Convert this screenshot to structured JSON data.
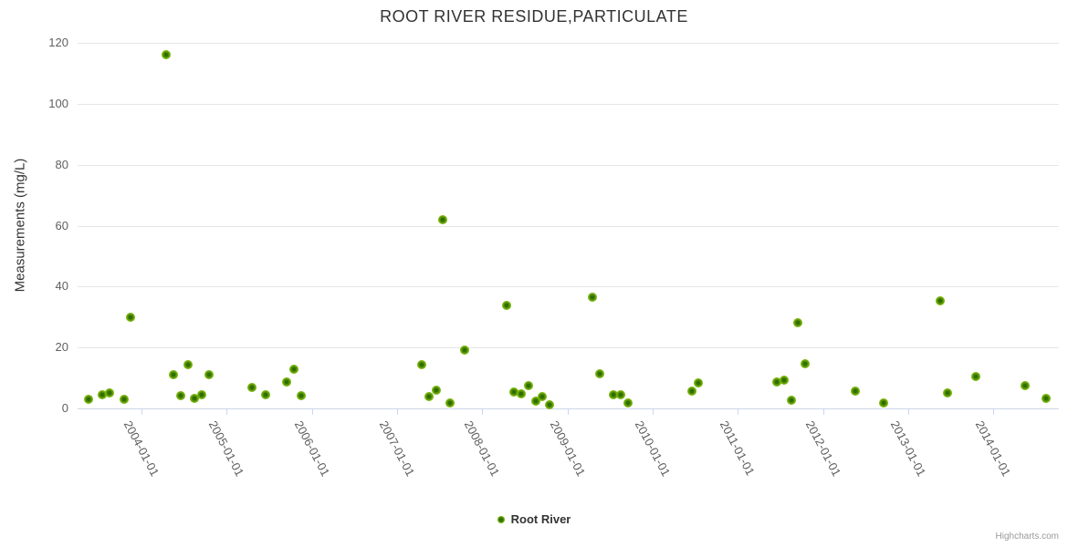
{
  "chart": {
    "credits": "Highcharts.com"
  },
  "colors": {
    "marker_fill": "#7cb50e",
    "marker_core": "#2f6e00",
    "grid": "#e6e6e6",
    "axis_line": "#ccd6eb",
    "title_text": "#333333",
    "tick_text": "#606060",
    "credits_text": "#999999"
  },
  "legend": {
    "items": [
      {
        "label": "Root River",
        "color": "#7cb50e"
      }
    ]
  },
  "chart_data": {
    "type": "scatter",
    "title": "ROOT RIVER RESIDUE,PARTICULATE",
    "xlabel": "",
    "ylabel": "Measurements (mg/L)",
    "ylim": [
      0,
      120
    ],
    "ytick_interval": 20,
    "yticks": [
      0,
      20,
      40,
      60,
      80,
      100,
      120
    ],
    "xticks": [
      "2004-01-01",
      "2005-01-01",
      "2006-01-01",
      "2007-01-01",
      "2008-01-01",
      "2009-01-01",
      "2010-01-01",
      "2011-01-01",
      "2012-01-01",
      "2013-01-01",
      "2014-01-01"
    ],
    "xlim_decimal_years": [
      2003.25,
      2014.77
    ],
    "grid": "horizontal-only",
    "legend_position": "bottom-center",
    "series": [
      {
        "name": "Root River",
        "color": "#7cb50e",
        "marker": "circle",
        "points": [
          {
            "date": "2003-05",
            "value": 3
          },
          {
            "date": "2003-07",
            "value": 4.5
          },
          {
            "date": "2003-08",
            "value": 5
          },
          {
            "date": "2003-10",
            "value": 3
          },
          {
            "date": "2003-11",
            "value": 30
          },
          {
            "date": "2004-04",
            "value": 116
          },
          {
            "date": "2004-05",
            "value": 11
          },
          {
            "date": "2004-06",
            "value": 4.3
          },
          {
            "date": "2004-07",
            "value": 14.4
          },
          {
            "date": "2004-08",
            "value": 3.2
          },
          {
            "date": "2004-09",
            "value": 4.5
          },
          {
            "date": "2004-10",
            "value": 11
          },
          {
            "date": "2005-04",
            "value": 7
          },
          {
            "date": "2005-06",
            "value": 4.4
          },
          {
            "date": "2005-09",
            "value": 8.8
          },
          {
            "date": "2005-10",
            "value": 13
          },
          {
            "date": "2005-11",
            "value": 4.3
          },
          {
            "date": "2007-04",
            "value": 14.5
          },
          {
            "date": "2007-05",
            "value": 3.8
          },
          {
            "date": "2007-06",
            "value": 5.9
          },
          {
            "date": "2007-07",
            "value": 62
          },
          {
            "date": "2007-08",
            "value": 1.9
          },
          {
            "date": "2007-10",
            "value": 19.3
          },
          {
            "date": "2008-04",
            "value": 33.8
          },
          {
            "date": "2008-05",
            "value": 5.3
          },
          {
            "date": "2008-06",
            "value": 4.7
          },
          {
            "date": "2008-07",
            "value": 7.4
          },
          {
            "date": "2008-08",
            "value": 2.5
          },
          {
            "date": "2008-09",
            "value": 3.8
          },
          {
            "date": "2008-10",
            "value": 1.2
          },
          {
            "date": "2009-04",
            "value": 36.4
          },
          {
            "date": "2009-05",
            "value": 11.3
          },
          {
            "date": "2009-07",
            "value": 4.6
          },
          {
            "date": "2009-08",
            "value": 4.4
          },
          {
            "date": "2009-09",
            "value": 1.9
          },
          {
            "date": "2010-06",
            "value": 5.7
          },
          {
            "date": "2010-07",
            "value": 8.5
          },
          {
            "date": "2011-06",
            "value": 8.8
          },
          {
            "date": "2011-07",
            "value": 9.3
          },
          {
            "date": "2011-08",
            "value": 2.7
          },
          {
            "date": "2011-09",
            "value": 28
          },
          {
            "date": "2011-10",
            "value": 14.6
          },
          {
            "date": "2012-05",
            "value": 5.8
          },
          {
            "date": "2012-09",
            "value": 1.8
          },
          {
            "date": "2013-05",
            "value": 35.4
          },
          {
            "date": "2013-06",
            "value": 5.1
          },
          {
            "date": "2013-10",
            "value": 10.6
          },
          {
            "date": "2014-05",
            "value": 7.5
          },
          {
            "date": "2014-08",
            "value": 3.4
          }
        ]
      }
    ]
  }
}
